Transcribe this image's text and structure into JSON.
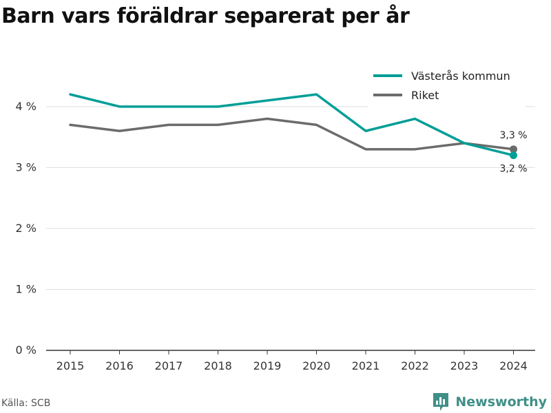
{
  "title": "Barn vars föräldrar separerat per år",
  "source": "Källa: SCB",
  "brand": {
    "name": "Newsworthy",
    "color": "#3f8f87"
  },
  "chart_data": {
    "type": "line",
    "x": [
      "2015",
      "2016",
      "2017",
      "2018",
      "2019",
      "2020",
      "2021",
      "2022",
      "2023",
      "2024"
    ],
    "ylim": [
      0,
      4.8
    ],
    "yticks": [
      0,
      1,
      2,
      3,
      4
    ],
    "ytick_labels": [
      "0 %",
      "1 %",
      "2 %",
      "3 %",
      "4 %"
    ],
    "grid": true,
    "legend_position": "top-right",
    "series": [
      {
        "name": "Västerås kommun",
        "color": "#009e96",
        "values": [
          4.2,
          4.0,
          4.0,
          4.0,
          4.1,
          4.2,
          3.6,
          3.8,
          3.4,
          3.2
        ],
        "end_label": "3,2 %"
      },
      {
        "name": "Riket",
        "color": "#6b6b6b",
        "values": [
          3.7,
          3.6,
          3.7,
          3.7,
          3.8,
          3.7,
          3.3,
          3.3,
          3.4,
          3.3
        ],
        "end_label": "3,3 %"
      }
    ]
  }
}
